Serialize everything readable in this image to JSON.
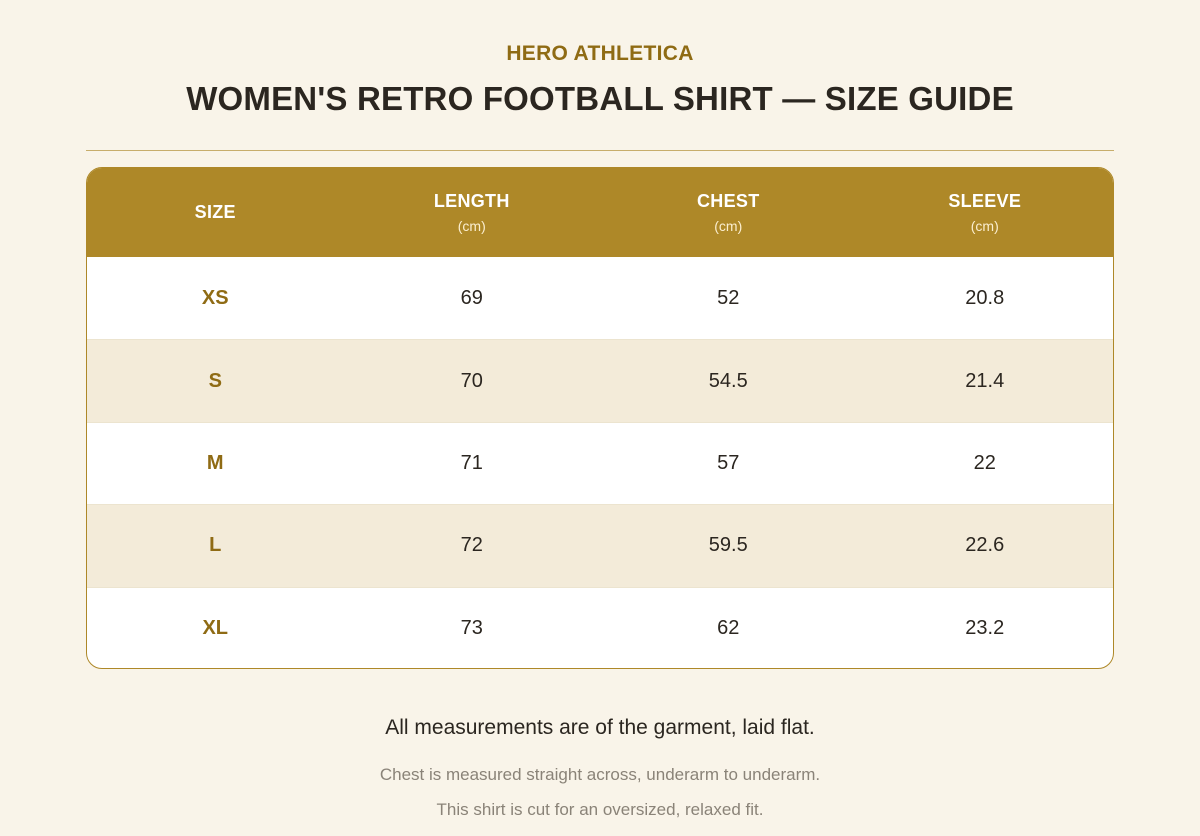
{
  "header": {
    "brand": "HERO ATHLETICA",
    "title": "WOMEN'S RETRO FOOTBALL SHIRT — SIZE GUIDE"
  },
  "table": {
    "columns": [
      {
        "label": "SIZE",
        "unit": ""
      },
      {
        "label": "LENGTH",
        "unit": "(cm)"
      },
      {
        "label": "CHEST",
        "unit": "(cm)"
      },
      {
        "label": "SLEEVE",
        "unit": "(cm)"
      }
    ],
    "rows": [
      {
        "size": "XS",
        "length": "69",
        "chest": "52",
        "sleeve": "20.8"
      },
      {
        "size": "S",
        "length": "70",
        "chest": "54.5",
        "sleeve": "21.4"
      },
      {
        "size": "M",
        "length": "71",
        "chest": "57",
        "sleeve": "22"
      },
      {
        "size": "L",
        "length": "72",
        "chest": "59.5",
        "sleeve": "22.6"
      },
      {
        "size": "XL",
        "length": "73",
        "chest": "62",
        "sleeve": "23.2"
      }
    ]
  },
  "notes": {
    "main": "All measurements are of the garment, laid flat.",
    "chest": "Chest is measured straight across, underarm to underarm.",
    "fit": "This shirt is cut for an oversized, relaxed fit."
  },
  "colors": {
    "accent": "#ae8828",
    "brand_text": "#8f6b14",
    "background": "#f9f4e9",
    "alt_row": "#f3ebd9"
  }
}
